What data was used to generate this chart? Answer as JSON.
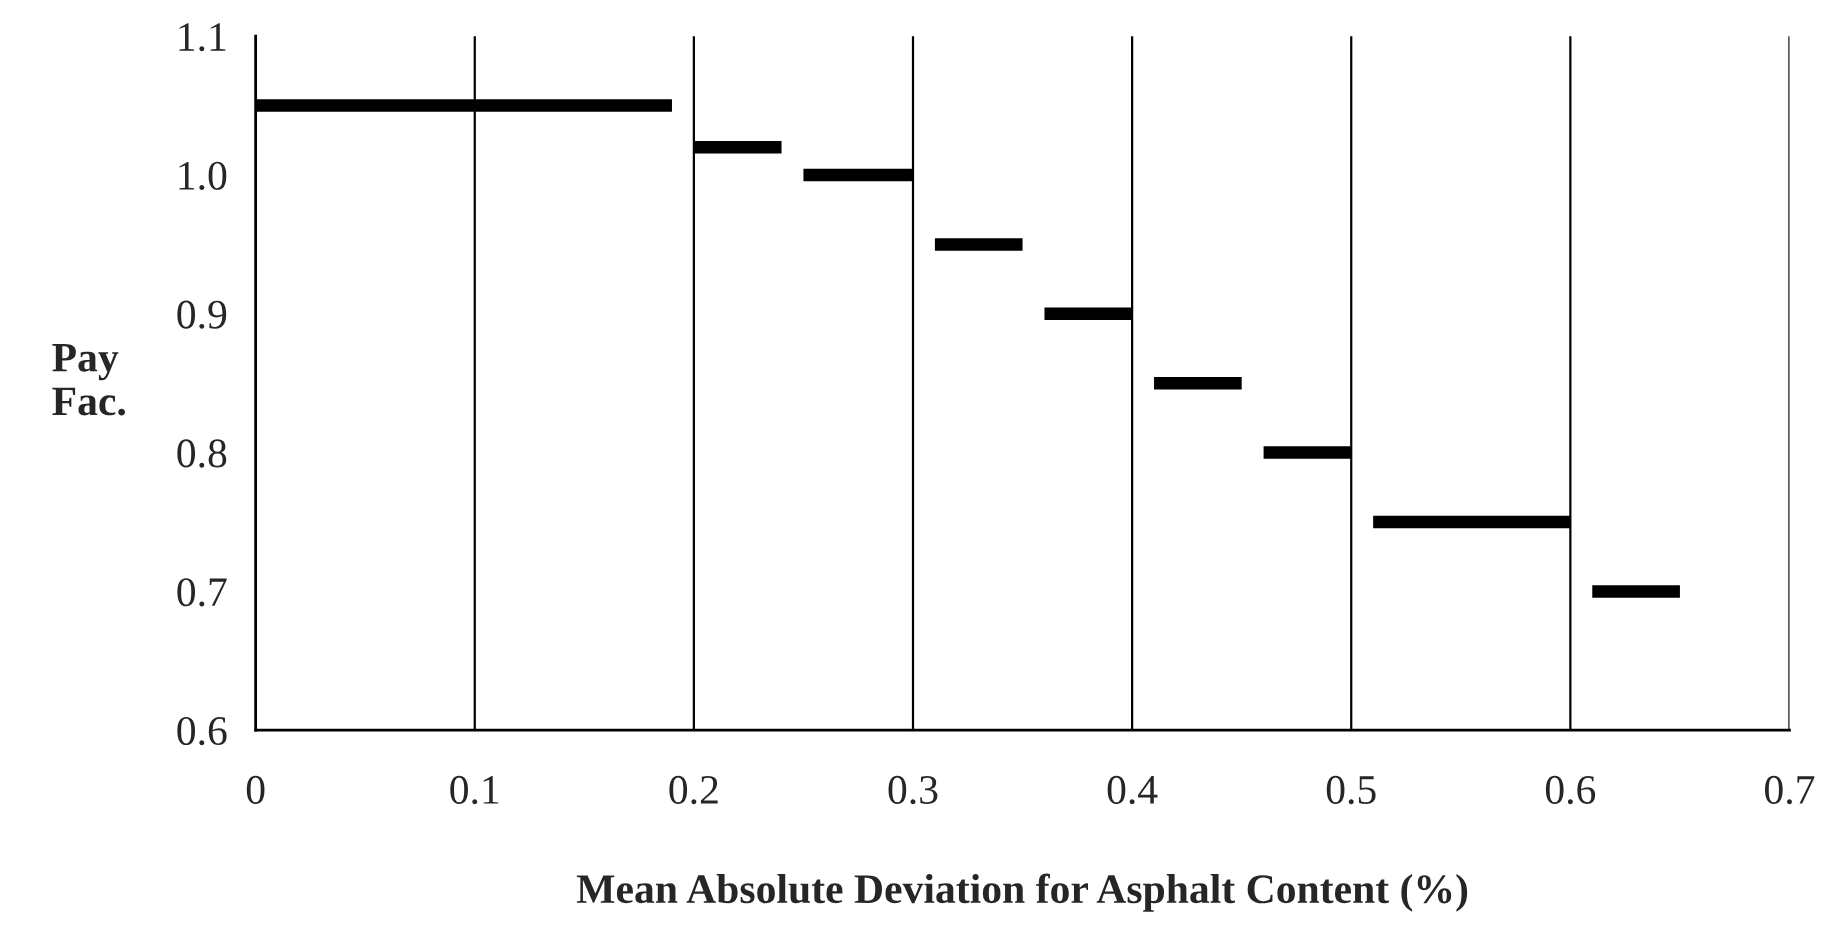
{
  "chart_data": {
    "type": "line",
    "xlabel": "Mean Absolute Deviation for Asphalt Content (%)",
    "ylabel": "Pay\nFac.",
    "series": [
      {
        "color": "#000000",
        "x": [
          0,
          0.19
        ],
        "values": [
          1.05,
          1.05
        ]
      },
      {
        "color": "#000000",
        "x": [
          0.2,
          0.24
        ],
        "values": [
          1.02,
          1.02
        ]
      },
      {
        "color": "#000000",
        "x": [
          0.25,
          0.3
        ],
        "values": [
          1.0,
          1.0
        ]
      },
      {
        "color": "#000000",
        "x": [
          0.31,
          0.35
        ],
        "values": [
          0.95,
          0.95
        ]
      },
      {
        "color": "#000000",
        "x": [
          0.36,
          0.4
        ],
        "values": [
          0.9,
          0.9
        ]
      },
      {
        "color": "#000000",
        "x": [
          0.41,
          0.45
        ],
        "values": [
          0.85,
          0.85
        ]
      },
      {
        "color": "#000000",
        "x": [
          0.46,
          0.5
        ],
        "values": [
          0.8,
          0.8
        ]
      },
      {
        "color": "#000000",
        "x": [
          0.51,
          0.6
        ],
        "values": [
          0.75,
          0.75
        ]
      },
      {
        "color": "#000000",
        "x": [
          0.61,
          0.65
        ],
        "values": [
          0.7,
          0.7
        ]
      }
    ],
    "xlim": [
      0,
      0.7
    ],
    "xticks": [
      {
        "value": 0,
        "label": "0"
      },
      0.1,
      0.2,
      0.3,
      0.4,
      0.5,
      0.6,
      0.7
    ],
    "ylim": [
      0.6,
      1.1
    ],
    "yticks": [
      0.6,
      0.7,
      0.8,
      0.9,
      {
        "value": 1.0,
        "label": "1.0"
      },
      1.1
    ],
    "grid": "x",
    "marker": "none",
    "line_style": "solid",
    "legend": false
  }
}
